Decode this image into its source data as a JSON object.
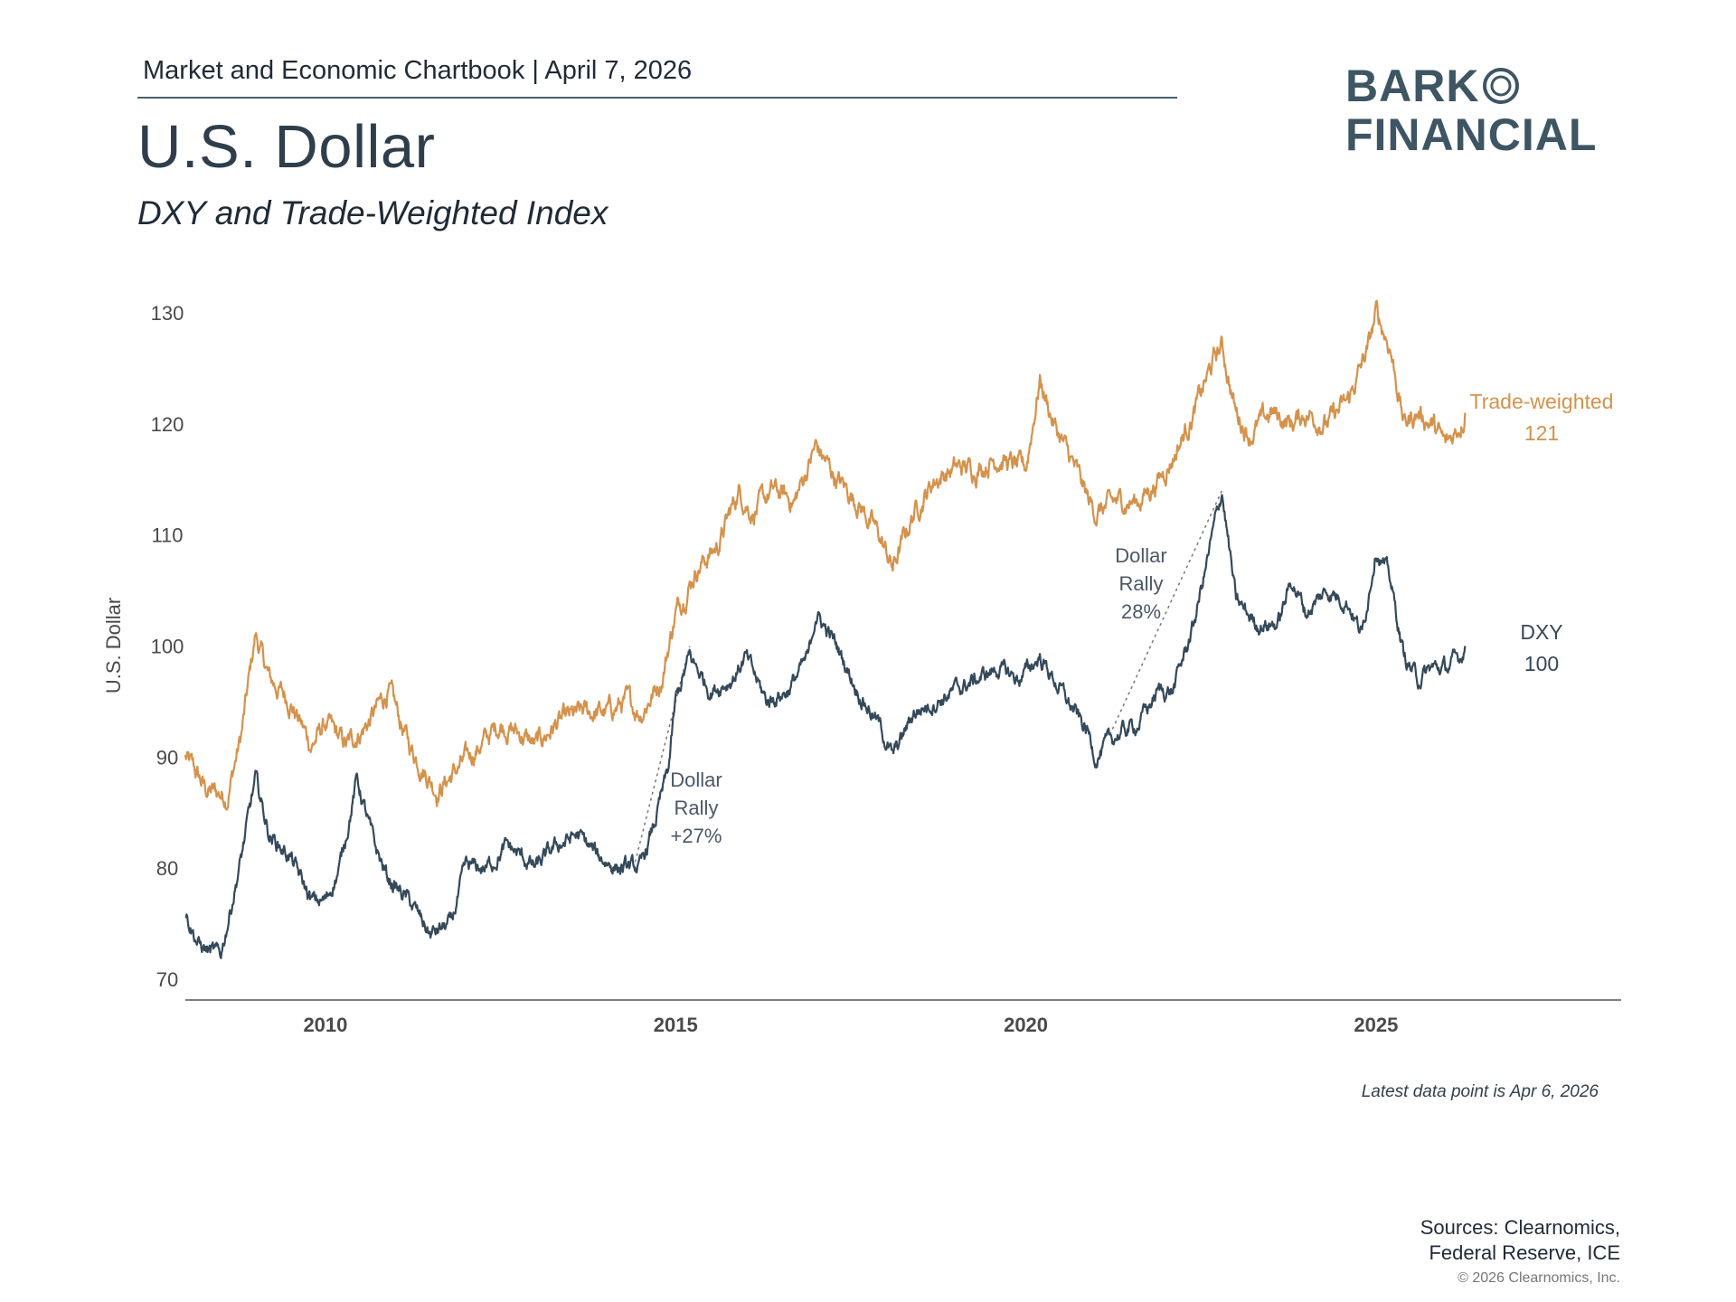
{
  "header": {
    "chartbook": "Market and Economic Chartbook | April 7, 2026",
    "title": "U.S. Dollar",
    "subtitle": "DXY and Trade-Weighted Index"
  },
  "logo": {
    "line1": "BARK",
    "line2": "FINANCIAL",
    "color": "#3e5563"
  },
  "chart_data": {
    "type": "line",
    "ylabel": "U.S. Dollar",
    "xlabel": "",
    "ylim": [
      70,
      130
    ],
    "xlim": [
      2008.0,
      2028.5
    ],
    "yticks": [
      70,
      80,
      90,
      100,
      110,
      120,
      130
    ],
    "xticks": [
      2010,
      2015,
      2020,
      2025
    ],
    "ytick_labels": [
      "70",
      "80",
      "90",
      "100",
      "110",
      "120",
      "130"
    ],
    "xtick_labels": [
      "2010",
      "2015",
      "2020",
      "2025"
    ],
    "grid": false,
    "series": [
      {
        "name": "Trade-weighted",
        "color": "#d4924c",
        "end_label": "Trade-weighted",
        "end_value": "121",
        "points": [
          [
            2008.0,
            90
          ],
          [
            2008.3,
            87
          ],
          [
            2008.6,
            86.5
          ],
          [
            2008.8,
            92
          ],
          [
            2009.0,
            101
          ],
          [
            2009.2,
            97
          ],
          [
            2009.5,
            95
          ],
          [
            2009.8,
            91
          ],
          [
            2010.0,
            93
          ],
          [
            2010.3,
            91
          ],
          [
            2010.6,
            93
          ],
          [
            2010.9,
            96
          ],
          [
            2011.2,
            91
          ],
          [
            2011.6,
            87
          ],
          [
            2011.9,
            89
          ],
          [
            2012.2,
            91
          ],
          [
            2012.5,
            93
          ],
          [
            2012.8,
            92
          ],
          [
            2013.0,
            91
          ],
          [
            2013.3,
            93
          ],
          [
            2013.7,
            94
          ],
          [
            2014.0,
            94
          ],
          [
            2014.3,
            95
          ],
          [
            2014.5,
            94
          ],
          [
            2014.8,
            97
          ],
          [
            2015.0,
            103
          ],
          [
            2015.3,
            107
          ],
          [
            2015.6,
            109
          ],
          [
            2015.9,
            114
          ],
          [
            2016.1,
            112
          ],
          [
            2016.4,
            114
          ],
          [
            2016.7,
            113
          ],
          [
            2017.0,
            118
          ],
          [
            2017.3,
            115
          ],
          [
            2017.6,
            113
          ],
          [
            2017.9,
            110
          ],
          [
            2018.1,
            107
          ],
          [
            2018.4,
            112
          ],
          [
            2018.7,
            115
          ],
          [
            2019.0,
            116
          ],
          [
            2019.3,
            116
          ],
          [
            2019.6,
            117
          ],
          [
            2019.9,
            116
          ],
          [
            2020.0,
            116
          ],
          [
            2020.2,
            124
          ],
          [
            2020.4,
            120
          ],
          [
            2020.7,
            116
          ],
          [
            2020.9,
            113
          ],
          [
            2021.0,
            112
          ],
          [
            2021.3,
            113
          ],
          [
            2021.6,
            113
          ],
          [
            2021.9,
            115
          ],
          [
            2022.1,
            117
          ],
          [
            2022.4,
            121
          ],
          [
            2022.7,
            126
          ],
          [
            2022.8,
            127
          ],
          [
            2023.0,
            121
          ],
          [
            2023.2,
            119
          ],
          [
            2023.5,
            121
          ],
          [
            2023.8,
            120
          ],
          [
            2024.0,
            121
          ],
          [
            2024.3,
            120
          ],
          [
            2024.6,
            122
          ],
          [
            2024.9,
            127
          ],
          [
            2025.0,
            130
          ],
          [
            2025.2,
            127
          ],
          [
            2025.4,
            120
          ],
          [
            2025.6,
            121
          ],
          [
            2025.8,
            120
          ],
          [
            2026.0,
            118
          ],
          [
            2026.2,
            120
          ],
          [
            2026.27,
            121
          ]
        ]
      },
      {
        "name": "DXY",
        "color": "#34495a",
        "end_label": "DXY",
        "end_value": "100",
        "points": [
          [
            2008.0,
            76
          ],
          [
            2008.2,
            73
          ],
          [
            2008.5,
            72
          ],
          [
            2008.8,
            81
          ],
          [
            2009.0,
            88
          ],
          [
            2009.2,
            83
          ],
          [
            2009.5,
            81
          ],
          [
            2009.8,
            77
          ],
          [
            2010.0,
            77
          ],
          [
            2010.2,
            80
          ],
          [
            2010.45,
            88
          ],
          [
            2010.7,
            82
          ],
          [
            2010.9,
            79
          ],
          [
            2011.2,
            77
          ],
          [
            2011.5,
            74
          ],
          [
            2011.8,
            75
          ],
          [
            2012.0,
            80
          ],
          [
            2012.3,
            80
          ],
          [
            2012.6,
            82
          ],
          [
            2012.8,
            81
          ],
          [
            2013.0,
            80
          ],
          [
            2013.3,
            82
          ],
          [
            2013.6,
            83
          ],
          [
            2013.9,
            81
          ],
          [
            2014.2,
            80
          ],
          [
            2014.5,
            80
          ],
          [
            2014.7,
            84
          ],
          [
            2014.9,
            89
          ],
          [
            2015.0,
            95
          ],
          [
            2015.2,
            99
          ],
          [
            2015.5,
            96
          ],
          [
            2015.8,
            97
          ],
          [
            2016.0,
            99
          ],
          [
            2016.3,
            95
          ],
          [
            2016.6,
            96
          ],
          [
            2016.9,
            99
          ],
          [
            2017.0,
            103
          ],
          [
            2017.3,
            100
          ],
          [
            2017.6,
            96
          ],
          [
            2017.9,
            93
          ],
          [
            2018.1,
            90
          ],
          [
            2018.4,
            94
          ],
          [
            2018.7,
            95
          ],
          [
            2019.0,
            96
          ],
          [
            2019.3,
            97
          ],
          [
            2019.6,
            98
          ],
          [
            2019.9,
            97
          ],
          [
            2020.2,
            99
          ],
          [
            2020.4,
            97
          ],
          [
            2020.7,
            94
          ],
          [
            2020.9,
            92
          ],
          [
            2021.0,
            90
          ],
          [
            2021.3,
            92
          ],
          [
            2021.6,
            93
          ],
          [
            2021.9,
            96
          ],
          [
            2022.1,
            96
          ],
          [
            2022.4,
            102
          ],
          [
            2022.6,
            108
          ],
          [
            2022.8,
            114
          ],
          [
            2023.0,
            104
          ],
          [
            2023.3,
            102
          ],
          [
            2023.6,
            102
          ],
          [
            2023.8,
            106
          ],
          [
            2024.0,
            103
          ],
          [
            2024.3,
            105
          ],
          [
            2024.6,
            104
          ],
          [
            2024.8,
            101
          ],
          [
            2025.0,
            109
          ],
          [
            2025.2,
            106
          ],
          [
            2025.4,
            99
          ],
          [
            2025.6,
            97
          ],
          [
            2025.8,
            98
          ],
          [
            2026.0,
            98
          ],
          [
            2026.2,
            99
          ],
          [
            2026.27,
            100
          ]
        ]
      }
    ],
    "annotations": [
      {
        "lines": [
          "Dollar",
          "Rally",
          "+27%"
        ],
        "from": [
          2014.4,
          80
        ],
        "to": [
          2015.2,
          100
        ]
      },
      {
        "lines": [
          "Dollar",
          "Rally",
          "28%"
        ],
        "from": [
          2021.2,
          92
        ],
        "to": [
          2022.8,
          114
        ]
      }
    ]
  },
  "footer": {
    "note": "Latest data point is Apr 6, 2026",
    "sources_line1": "Sources: Clearnomics,",
    "sources_line2": "Federal Reserve, ICE",
    "copyright": "© 2026 Clearnomics, Inc."
  }
}
